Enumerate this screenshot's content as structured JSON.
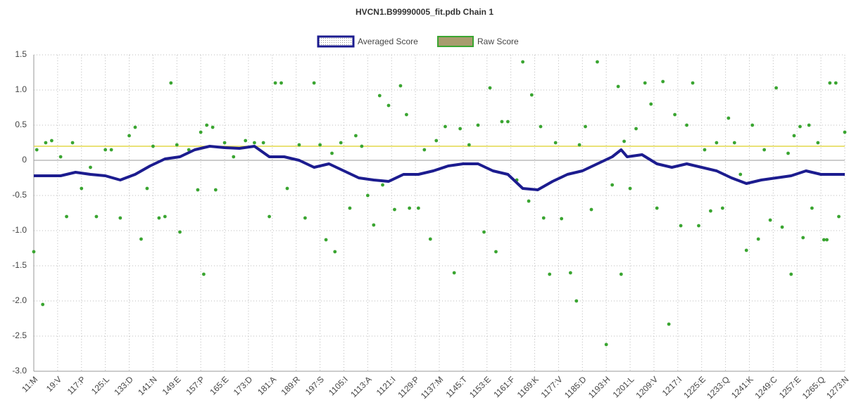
{
  "chart_data": {
    "type": "line",
    "title": "HVCN1.B99990005_fit.pdb Chain 1",
    "xlim": [
      1,
      273
    ],
    "xticks": [
      {
        "value": 1,
        "label": "11:M"
      },
      {
        "value": 9,
        "label": "19:V"
      },
      {
        "value": 17,
        "label": "117:P"
      },
      {
        "value": 25,
        "label": "125:L"
      },
      {
        "value": 33,
        "label": "133:D"
      },
      {
        "value": 41,
        "label": "141:N"
      },
      {
        "value": 49,
        "label": "149:E"
      },
      {
        "value": 57,
        "label": "157:P"
      },
      {
        "value": 65,
        "label": "165:E"
      },
      {
        "value": 73,
        "label": "173:D"
      },
      {
        "value": 81,
        "label": "181:A"
      },
      {
        "value": 89,
        "label": "189:R"
      },
      {
        "value": 97,
        "label": "197:S"
      },
      {
        "value": 105,
        "label": "1105:I"
      },
      {
        "value": 113,
        "label": "1113:A"
      },
      {
        "value": 121,
        "label": "1121:I"
      },
      {
        "value": 129,
        "label": "1129:P"
      },
      {
        "value": 137,
        "label": "1137:M"
      },
      {
        "value": 145,
        "label": "1145:T"
      },
      {
        "value": 153,
        "label": "1153:E"
      },
      {
        "value": 161,
        "label": "1161:F"
      },
      {
        "value": 169,
        "label": "1169:K"
      },
      {
        "value": 177,
        "label": "1177:V"
      },
      {
        "value": 185,
        "label": "1185:D"
      },
      {
        "value": 193,
        "label": "1193:H"
      },
      {
        "value": 201,
        "label": "1201:L"
      },
      {
        "value": 209,
        "label": "1209:V"
      },
      {
        "value": 217,
        "label": "1217:I"
      },
      {
        "value": 225,
        "label": "1225:E"
      },
      {
        "value": 233,
        "label": "1233:Q"
      },
      {
        "value": 241,
        "label": "1241:K"
      },
      {
        "value": 249,
        "label": "1249:C"
      },
      {
        "value": 257,
        "label": "1257:E"
      },
      {
        "value": 265,
        "label": "1265:Q"
      },
      {
        "value": 273,
        "label": "1273:N"
      }
    ],
    "ylim": [
      -3,
      1.5
    ],
    "yticks": [
      1.5,
      {
        "value": 1,
        "label": "1.0"
      },
      0.5,
      0,
      -0.5,
      {
        "value": -1,
        "label": "-1.0"
      },
      -1.5,
      {
        "value": -2,
        "label": "-2.0"
      },
      -2.5,
      {
        "value": -3,
        "label": "-3.0"
      }
    ],
    "grid": true,
    "legend": "top",
    "reference_line": {
      "value": 0.2,
      "color": "#e3d84a"
    },
    "series": [
      {
        "name": "Averaged Score",
        "kind": "line",
        "color": "#1c1c8f",
        "legend_fill": "#dcdcdc",
        "x": [
          1,
          5,
          10,
          12,
          15,
          20,
          25,
          30,
          35,
          40,
          45,
          50,
          55,
          60,
          65,
          70,
          75,
          80,
          85,
          90,
          95,
          100,
          105,
          110,
          115,
          120,
          125,
          130,
          135,
          140,
          145,
          150,
          155,
          160,
          165,
          170,
          175,
          180,
          185,
          190,
          195,
          198,
          200,
          205,
          210,
          215,
          220,
          225,
          230,
          235,
          240,
          245,
          250,
          255,
          260,
          265,
          273
        ],
        "values": [
          -0.22,
          -0.22,
          -0.22,
          -0.2,
          -0.17,
          -0.2,
          -0.22,
          -0.28,
          -0.2,
          -0.08,
          0.02,
          0.05,
          0.15,
          0.2,
          0.18,
          0.17,
          0.2,
          0.05,
          0.05,
          0.0,
          -0.1,
          -0.05,
          -0.15,
          -0.25,
          -0.28,
          -0.3,
          -0.2,
          -0.2,
          -0.15,
          -0.08,
          -0.05,
          -0.05,
          -0.15,
          -0.2,
          -0.4,
          -0.42,
          -0.3,
          -0.2,
          -0.15,
          -0.05,
          0.05,
          0.15,
          0.05,
          0.08,
          -0.05,
          -0.1,
          -0.05,
          -0.1,
          -0.15,
          -0.25,
          -0.33,
          -0.28,
          -0.25,
          -0.22,
          -0.15,
          -0.2,
          -0.2
        ]
      },
      {
        "name": "Raw Score",
        "kind": "scatter",
        "color": "#3aa531",
        "legend_fill": "#a89c6e",
        "x": [
          1,
          2,
          4,
          5,
          7,
          10,
          12,
          14,
          17,
          20,
          22,
          25,
          27,
          30,
          33,
          35,
          37,
          39,
          41,
          43,
          45,
          47,
          49,
          50,
          53,
          56,
          57,
          58,
          59,
          61,
          62,
          65,
          68,
          72,
          75,
          78,
          80,
          82,
          84,
          86,
          90,
          92,
          95,
          97,
          99,
          101,
          102,
          104,
          107,
          109,
          111,
          113,
          115,
          117,
          118,
          120,
          122,
          124,
          126,
          127,
          130,
          132,
          134,
          136,
          139,
          142,
          144,
          147,
          150,
          152,
          154,
          156,
          158,
          160,
          163,
          165,
          167,
          168,
          171,
          172,
          174,
          176,
          178,
          181,
          183,
          184,
          186,
          188,
          190,
          193,
          195,
          197,
          198,
          199,
          201,
          203,
          206,
          208,
          210,
          212,
          214,
          216,
          218,
          220,
          222,
          224,
          226,
          228,
          230,
          232,
          234,
          236,
          238,
          240,
          242,
          244,
          246,
          248,
          250,
          252,
          254,
          255,
          256,
          258,
          259,
          261,
          262,
          264,
          266,
          267,
          268,
          270,
          271,
          273
        ],
        "values": [
          -1.3,
          0.15,
          -2.05,
          0.25,
          0.28,
          0.05,
          -0.8,
          0.25,
          -0.4,
          -0.1,
          -0.8,
          0.15,
          0.15,
          -0.82,
          0.35,
          0.47,
          -1.12,
          -0.4,
          0.2,
          -0.82,
          -0.8,
          1.1,
          0.22,
          -1.02,
          0.15,
          -0.42,
          0.4,
          -1.62,
          0.5,
          0.47,
          -0.42,
          0.25,
          0.05,
          0.28,
          0.25,
          0.25,
          -0.8,
          1.1,
          1.1,
          -0.4,
          0.22,
          -0.82,
          1.1,
          0.22,
          -1.13,
          0.1,
          -1.3,
          0.25,
          -0.68,
          0.35,
          0.2,
          -0.5,
          -0.92,
          0.92,
          -0.35,
          0.78,
          -0.7,
          1.06,
          0.65,
          -0.68,
          -0.68,
          0.15,
          -1.12,
          0.28,
          0.48,
          -1.6,
          0.45,
          0.22,
          0.5,
          -1.02,
          1.03,
          -1.3,
          0.55,
          0.55,
          -0.28,
          1.4,
          -0.58,
          0.93,
          0.48,
          -0.82,
          -1.62,
          0.25,
          -0.83,
          -1.6,
          -2.0,
          0.22,
          0.48,
          -0.7,
          1.4,
          -2.62,
          -0.35,
          1.05,
          -1.62,
          0.27,
          -0.4,
          0.45,
          1.1,
          0.8,
          -0.68,
          1.12,
          -2.33,
          0.65,
          -0.93,
          0.5,
          1.1,
          -0.93,
          0.15,
          -0.72,
          0.25,
          -0.68,
          0.6,
          0.25,
          -0.2,
          -1.28,
          0.5,
          -1.12,
          0.15,
          -0.85,
          1.03,
          -0.95,
          0.1,
          -1.62,
          0.35,
          0.48,
          -1.1,
          0.5,
          -0.68,
          0.25,
          -1.13,
          -1.13,
          1.1,
          1.1,
          -0.8,
          0.4
        ]
      }
    ]
  }
}
